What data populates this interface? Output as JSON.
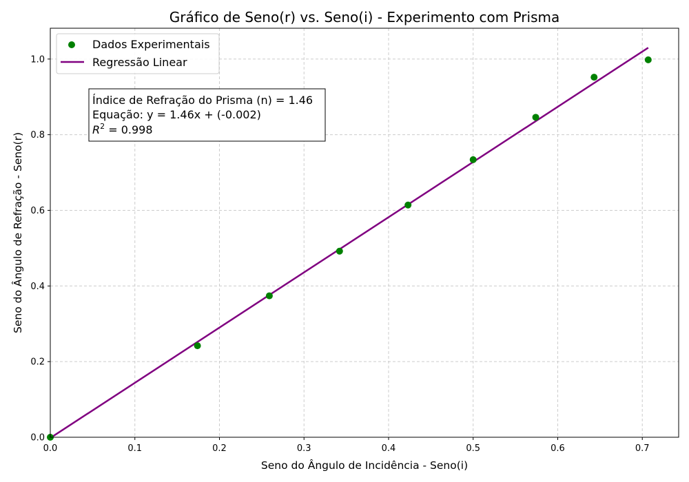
{
  "chart_data": {
    "type": "scatter",
    "title": "Gráfico de Seno(r) vs. Seno(i) - Experimento com Prisma",
    "xlabel": "Seno do Ângulo de Incidência - Seno(i)",
    "ylabel": "Seno do Ângulo de Refração - Seno(r)",
    "xlim": [
      0.0,
      0.743
    ],
    "ylim": [
      0.0,
      1.0815
    ],
    "xticks": [
      "0.0",
      "0.1",
      "0.2",
      "0.3",
      "0.4",
      "0.5",
      "0.6",
      "0.7"
    ],
    "yticks": [
      "0.0",
      "0.2",
      "0.4",
      "0.6",
      "0.8",
      "1.0"
    ],
    "grid": true,
    "legend_position": "top-left",
    "series": [
      {
        "name": "Dados Experimentais",
        "kind": "scatter",
        "color": "#008000",
        "x": [
          0.0,
          0.174,
          0.259,
          0.342,
          0.423,
          0.5,
          0.574,
          0.643,
          0.707
        ],
        "y": [
          0.0,
          0.242,
          0.374,
          0.492,
          0.614,
          0.734,
          0.846,
          0.952,
          0.998
        ]
      },
      {
        "name": "Regressão Linear",
        "kind": "line",
        "color": "#800080",
        "x": [
          0.0,
          0.707
        ],
        "y": [
          -0.002,
          1.03
        ]
      }
    ],
    "annotation": {
      "line1": "Índice de Refração do Prisma (n) = 1.46",
      "line2": "Equação: y = 1.46x + (-0.002)",
      "r2_label": "R",
      "r2_sup": "2",
      "r2_value": " = 0.998"
    }
  }
}
